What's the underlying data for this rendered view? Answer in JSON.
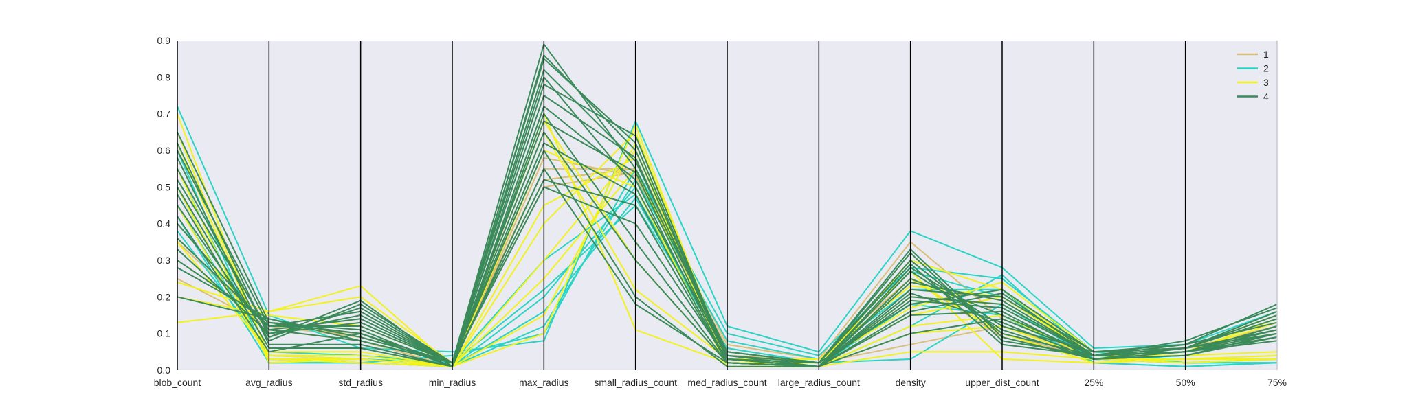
{
  "chart_data": {
    "type": "line",
    "subtype": "parallel-coordinates",
    "title": "",
    "xlabel": "",
    "ylabel": "",
    "ylim": [
      0,
      0.9
    ],
    "yticks": [
      0.0,
      0.1,
      0.2,
      0.3,
      0.4,
      0.5,
      0.6,
      0.7,
      0.8,
      0.9
    ],
    "ytick_labels": [
      "0.0",
      "0.1",
      "0.2",
      "0.3",
      "0.4",
      "0.5",
      "0.6",
      "0.7",
      "0.8",
      "0.9"
    ],
    "categories": [
      "blob_count",
      "avg_radius",
      "std_radius",
      "min_radius",
      "max_radius",
      "small_radius_count",
      "med_radius_count",
      "large_radius_count",
      "density",
      "upper_dist_count",
      "25%",
      "50%",
      "75%"
    ],
    "grid": false,
    "legend_position": "top-right",
    "background": "#eaeaf2",
    "legend": [
      {
        "name": "1",
        "color": "#d9bf77"
      },
      {
        "name": "2",
        "color": "#2ad4c5"
      },
      {
        "name": "3",
        "color": "#f2f21d"
      },
      {
        "name": "4",
        "color": "#3a8a5a"
      }
    ],
    "series": [
      {
        "name": "1",
        "color": "#d9bf77",
        "lines": [
          [
            0.3,
            0.13,
            0.09,
            0.02,
            0.55,
            0.55,
            0.07,
            0.03,
            0.35,
            0.14,
            0.04,
            0.06,
            0.1
          ],
          [
            0.25,
            0.12,
            0.1,
            0.02,
            0.5,
            0.54,
            0.05,
            0.02,
            0.3,
            0.1,
            0.03,
            0.05,
            0.09
          ],
          [
            0.4,
            0.11,
            0.08,
            0.01,
            0.58,
            0.53,
            0.06,
            0.02,
            0.07,
            0.12,
            0.04,
            0.06,
            0.12
          ],
          [
            0.35,
            0.12,
            0.09,
            0.02,
            0.52,
            0.55,
            0.04,
            0.03,
            0.25,
            0.09,
            0.03,
            0.05,
            0.11
          ]
        ]
      },
      {
        "name": "2",
        "color": "#2ad4c5",
        "lines": [
          [
            0.72,
            0.15,
            0.06,
            0.05,
            0.08,
            0.68,
            0.12,
            0.05,
            0.38,
            0.28,
            0.06,
            0.07,
            0.16
          ],
          [
            0.6,
            0.02,
            0.02,
            0.04,
            0.1,
            0.55,
            0.1,
            0.04,
            0.28,
            0.25,
            0.05,
            0.02,
            0.02
          ],
          [
            0.5,
            0.03,
            0.02,
            0.01,
            0.12,
            0.52,
            0.08,
            0.03,
            0.22,
            0.22,
            0.02,
            0.01,
            0.02
          ],
          [
            0.45,
            0.04,
            0.03,
            0.02,
            0.22,
            0.45,
            0.06,
            0.02,
            0.27,
            0.2,
            0.04,
            0.03,
            0.03
          ],
          [
            0.38,
            0.05,
            0.04,
            0.02,
            0.3,
            0.48,
            0.05,
            0.02,
            0.03,
            0.18,
            0.03,
            0.02,
            0.02
          ],
          [
            0.55,
            0.03,
            0.02,
            0.01,
            0.16,
            0.47,
            0.04,
            0.01,
            0.18,
            0.15,
            0.02,
            0.01,
            0.02
          ],
          [
            0.42,
            0.02,
            0.02,
            0.01,
            0.2,
            0.5,
            0.03,
            0.01,
            0.12,
            0.26,
            0.03,
            0.02,
            0.03
          ]
        ]
      },
      {
        "name": "3",
        "color": "#f2f21d",
        "lines": [
          [
            0.13,
            0.16,
            0.23,
            0.01,
            0.7,
            0.11,
            0.02,
            0.02,
            0.27,
            0.03,
            0.02,
            0.03,
            0.04
          ],
          [
            0.7,
            0.03,
            0.02,
            0.01,
            0.1,
            0.67,
            0.02,
            0.02,
            0.17,
            0.24,
            0.05,
            0.06,
            0.15
          ],
          [
            0.24,
            0.16,
            0.2,
            0.02,
            0.65,
            0.22,
            0.03,
            0.03,
            0.23,
            0.2,
            0.04,
            0.05,
            0.13
          ],
          [
            0.62,
            0.04,
            0.03,
            0.01,
            0.4,
            0.65,
            0.03,
            0.01,
            0.15,
            0.2,
            0.04,
            0.05,
            0.12
          ],
          [
            0.5,
            0.03,
            0.03,
            0.01,
            0.3,
            0.6,
            0.02,
            0.01,
            0.1,
            0.12,
            0.03,
            0.03,
            0.04
          ],
          [
            0.55,
            0.02,
            0.03,
            0.01,
            0.25,
            0.55,
            0.02,
            0.01,
            0.2,
            0.18,
            0.04,
            0.04,
            0.05
          ],
          [
            0.45,
            0.03,
            0.02,
            0.01,
            0.6,
            0.5,
            0.01,
            0.01,
            0.05,
            0.05,
            0.03,
            0.02,
            0.03
          ],
          [
            0.2,
            0.15,
            0.12,
            0.02,
            0.68,
            0.3,
            0.02,
            0.01,
            0.3,
            0.22,
            0.04,
            0.05,
            0.14
          ],
          [
            0.35,
            0.05,
            0.05,
            0.01,
            0.15,
            0.62,
            0.01,
            0.01,
            0.12,
            0.15,
            0.03,
            0.03,
            0.04
          ],
          [
            0.65,
            0.04,
            0.04,
            0.01,
            0.45,
            0.58,
            0.02,
            0.01,
            0.25,
            0.1,
            0.02,
            0.03,
            0.03
          ]
        ]
      },
      {
        "name": "4",
        "color": "#3a8a5a",
        "lines": [
          [
            0.65,
            0.13,
            0.1,
            0.02,
            0.89,
            0.55,
            0.05,
            0.02,
            0.32,
            0.08,
            0.04,
            0.07,
            0.18
          ],
          [
            0.6,
            0.12,
            0.12,
            0.02,
            0.85,
            0.62,
            0.03,
            0.02,
            0.3,
            0.1,
            0.04,
            0.08,
            0.17
          ],
          [
            0.55,
            0.1,
            0.15,
            0.02,
            0.8,
            0.5,
            0.04,
            0.01,
            0.28,
            0.12,
            0.05,
            0.06,
            0.14
          ],
          [
            0.5,
            0.08,
            0.18,
            0.02,
            0.75,
            0.58,
            0.03,
            0.01,
            0.25,
            0.15,
            0.04,
            0.05,
            0.12
          ],
          [
            0.45,
            0.09,
            0.19,
            0.01,
            0.7,
            0.35,
            0.02,
            0.01,
            0.22,
            0.2,
            0.05,
            0.06,
            0.1
          ],
          [
            0.4,
            0.11,
            0.14,
            0.02,
            0.65,
            0.3,
            0.02,
            0.01,
            0.2,
            0.18,
            0.04,
            0.05,
            0.09
          ],
          [
            0.36,
            0.12,
            0.16,
            0.02,
            0.6,
            0.2,
            0.01,
            0.01,
            0.15,
            0.16,
            0.03,
            0.05,
            0.08
          ],
          [
            0.3,
            0.13,
            0.11,
            0.01,
            0.55,
            0.18,
            0.02,
            0.01,
            0.1,
            0.14,
            0.04,
            0.06,
            0.11
          ],
          [
            0.28,
            0.14,
            0.09,
            0.02,
            0.5,
            0.4,
            0.03,
            0.02,
            0.18,
            0.22,
            0.05,
            0.07,
            0.13
          ],
          [
            0.2,
            0.14,
            0.08,
            0.02,
            0.52,
            0.45,
            0.02,
            0.01,
            0.24,
            0.19,
            0.04,
            0.05,
            0.12
          ],
          [
            0.58,
            0.07,
            0.07,
            0.01,
            0.86,
            0.6,
            0.04,
            0.02,
            0.33,
            0.09,
            0.03,
            0.06,
            0.15
          ],
          [
            0.48,
            0.06,
            0.06,
            0.01,
            0.78,
            0.64,
            0.03,
            0.01,
            0.27,
            0.11,
            0.03,
            0.04,
            0.1
          ],
          [
            0.42,
            0.05,
            0.1,
            0.01,
            0.72,
            0.52,
            0.02,
            0.01,
            0.21,
            0.13,
            0.03,
            0.04,
            0.09
          ],
          [
            0.33,
            0.1,
            0.13,
            0.02,
            0.62,
            0.48,
            0.02,
            0.01,
            0.19,
            0.17,
            0.04,
            0.05,
            0.11
          ],
          [
            0.62,
            0.09,
            0.17,
            0.02,
            0.82,
            0.57,
            0.05,
            0.02,
            0.29,
            0.07,
            0.04,
            0.06,
            0.16
          ],
          [
            0.52,
            0.11,
            0.08,
            0.02,
            0.68,
            0.54,
            0.03,
            0.01,
            0.16,
            0.21,
            0.04,
            0.05,
            0.1
          ]
        ]
      }
    ]
  }
}
